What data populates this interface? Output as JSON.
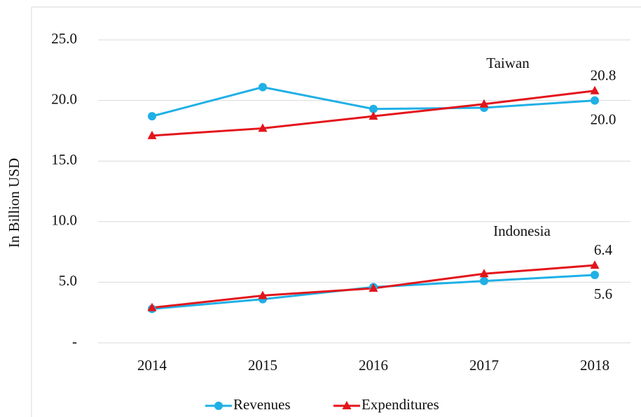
{
  "chart_data": {
    "type": "line",
    "y_label": "In Billion USD",
    "x": [
      2014,
      2015,
      2016,
      2017,
      2018
    ],
    "xlim": [
      2013.5,
      2018.5
    ],
    "ylim": [
      0,
      25
    ],
    "yticks": [
      {
        "value": 0,
        "label": "-"
      },
      {
        "value": 5,
        "label": "5.0"
      },
      {
        "value": 10,
        "label": "10.0"
      },
      {
        "value": 15,
        "label": "15.0"
      },
      {
        "value": 20,
        "label": "20.0"
      },
      {
        "value": 25,
        "label": "25.0"
      }
    ],
    "grid": true,
    "legend": "bottom",
    "groups": [
      {
        "label": "Taiwan",
        "series": [
          {
            "name": "Revenues",
            "color": "#1fb0e6",
            "marker": "circle",
            "values": [
              18.7,
              21.1,
              19.3,
              19.4,
              20.0
            ],
            "value_labels": [
              null,
              null,
              null,
              null,
              "20.0"
            ]
          },
          {
            "name": "Expenditures",
            "color": "#e3151b",
            "marker": "triangle",
            "values": [
              17.1,
              17.7,
              18.7,
              19.7,
              20.8
            ],
            "value_labels": [
              null,
              null,
              null,
              null,
              "20.8"
            ]
          }
        ]
      },
      {
        "label": "Indonesia",
        "series": [
          {
            "name": "Revenues",
            "color": "#1fb0e6",
            "marker": "circle",
            "values": [
              2.8,
              3.6,
              4.6,
              5.1,
              5.6
            ],
            "value_labels": [
              null,
              null,
              null,
              null,
              "5.6"
            ]
          },
          {
            "name": "Expenditures",
            "color": "#e3151b",
            "marker": "triangle",
            "values": [
              2.9,
              3.9,
              4.5,
              5.7,
              6.4
            ],
            "value_labels": [
              null,
              null,
              null,
              null,
              "6.4"
            ]
          }
        ]
      }
    ]
  }
}
